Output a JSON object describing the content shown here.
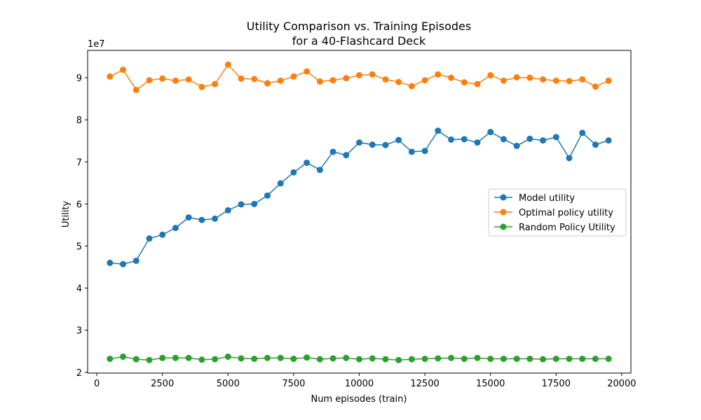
{
  "chart_data": {
    "type": "line",
    "title_lines": [
      "Utility Comparison vs. Training Episodes",
      "for a 40-Flashcard Deck"
    ],
    "xlabel": "Num episodes (train)",
    "ylabel": "Utility",
    "y_multiplier_label": "1e7",
    "xlim": [
      -350,
      20350
    ],
    "ylim": [
      1.98,
      9.65
    ],
    "x_ticks": [
      0,
      2500,
      5000,
      7500,
      10000,
      12500,
      15000,
      17500,
      20000
    ],
    "y_ticks": [
      2,
      3,
      4,
      5,
      6,
      7,
      8,
      9
    ],
    "grid": false,
    "legend_position": "center-right",
    "x": [
      500,
      1000,
      1500,
      2000,
      2500,
      3000,
      3500,
      4000,
      4500,
      5000,
      5500,
      6000,
      6500,
      7000,
      7500,
      8000,
      8500,
      9000,
      9500,
      10000,
      10500,
      11000,
      11500,
      12000,
      12500,
      13000,
      13500,
      14000,
      14500,
      15000,
      15500,
      16000,
      16500,
      17000,
      17500,
      18000,
      18500,
      19000,
      19500
    ],
    "series": [
      {
        "name": "Model utility",
        "color": "#1f77b4",
        "values": [
          4.6,
          4.57,
          4.65,
          5.18,
          5.27,
          5.43,
          5.68,
          5.62,
          5.65,
          5.85,
          5.99,
          6.0,
          6.2,
          6.49,
          6.75,
          6.98,
          6.81,
          7.24,
          7.16,
          7.46,
          7.41,
          7.4,
          7.52,
          7.24,
          7.26,
          7.74,
          7.53,
          7.54,
          7.46,
          7.71,
          7.54,
          7.38,
          7.55,
          7.51,
          7.59,
          7.09,
          7.69,
          7.41,
          7.51
        ]
      },
      {
        "name": "Optimal policy utility",
        "color": "#ff7f0e",
        "values": [
          9.03,
          9.19,
          8.71,
          8.94,
          8.98,
          8.93,
          8.96,
          8.78,
          8.85,
          9.31,
          8.98,
          8.97,
          8.87,
          8.93,
          9.03,
          9.15,
          8.91,
          8.94,
          8.99,
          9.06,
          9.08,
          8.96,
          8.9,
          8.8,
          8.94,
          9.08,
          9.0,
          8.89,
          8.85,
          9.06,
          8.93,
          9.01,
          9.0,
          8.96,
          8.93,
          8.92,
          8.96,
          8.79,
          8.93
        ]
      },
      {
        "name": "Random Policy Utility",
        "color": "#2ca02c",
        "values": [
          2.32,
          2.37,
          2.31,
          2.29,
          2.34,
          2.34,
          2.34,
          2.3,
          2.31,
          2.37,
          2.33,
          2.32,
          2.34,
          2.34,
          2.32,
          2.35,
          2.31,
          2.33,
          2.34,
          2.31,
          2.33,
          2.31,
          2.29,
          2.31,
          2.32,
          2.33,
          2.34,
          2.32,
          2.34,
          2.32,
          2.32,
          2.32,
          2.32,
          2.31,
          2.32,
          2.32,
          2.32,
          2.32,
          2.32
        ]
      }
    ]
  }
}
